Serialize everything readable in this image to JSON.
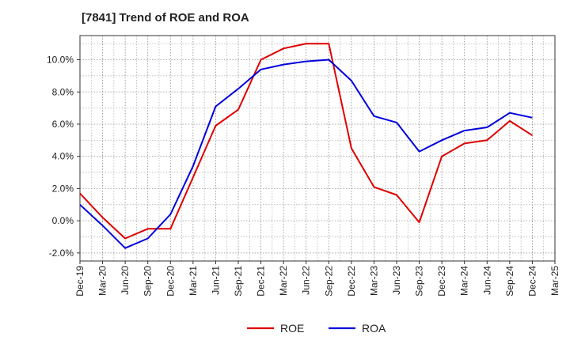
{
  "title": "[7841]  Trend of ROE and ROA",
  "chart_data": {
    "type": "line",
    "title": "[7841]  Trend of ROE and ROA",
    "categories": [
      "Dec-19",
      "Mar-20",
      "Jun-20",
      "Sep-20",
      "Dec-20",
      "Mar-21",
      "Jun-21",
      "Sep-21",
      "Dec-21",
      "Mar-22",
      "Jun-22",
      "Sep-22",
      "Dec-22",
      "Mar-23",
      "Jun-23",
      "Sep-23",
      "Dec-23",
      "Mar-24",
      "Jun-24",
      "Sep-24",
      "Dec-24",
      "Mar-25"
    ],
    "ylim": [
      -2.5,
      11.5
    ],
    "yticks": [
      -2.0,
      0.0,
      2.0,
      4.0,
      6.0,
      8.0,
      10.0
    ],
    "ytick_labels": [
      "-2.0%",
      "0.0%",
      "2.0%",
      "4.0%",
      "6.0%",
      "8.0%",
      "10.0%"
    ],
    "grid": true,
    "legend_position": "bottom",
    "series": [
      {
        "name": "ROE",
        "color": "#e00000",
        "values": [
          1.7,
          0.2,
          -1.1,
          -0.5,
          -0.5,
          2.7,
          5.9,
          6.9,
          10.0,
          10.7,
          11.0,
          11.0,
          4.5,
          2.1,
          1.6,
          -0.1,
          4.0,
          4.8,
          5.0,
          6.2,
          5.3,
          null
        ]
      },
      {
        "name": "ROA",
        "color": "#0000dd",
        "values": [
          1.0,
          -0.3,
          -1.7,
          -1.1,
          0.4,
          3.4,
          7.1,
          8.2,
          9.4,
          9.7,
          9.9,
          10.0,
          8.7,
          6.5,
          6.1,
          4.3,
          5.0,
          5.6,
          5.8,
          6.7,
          6.4,
          null
        ]
      }
    ]
  }
}
